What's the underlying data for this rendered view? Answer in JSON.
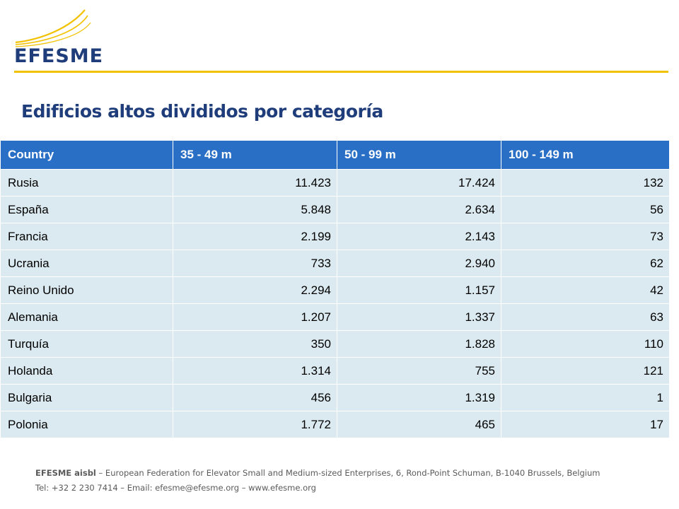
{
  "brand": {
    "logo_text": "EFESME",
    "accent_color": "#f2c200",
    "brand_color": "#1f3d7a"
  },
  "title": "Edificios altos divididos por categoría",
  "table": {
    "header_color": "#2a6fc6",
    "row_color": "#dbeaf0",
    "columns": [
      "Country",
      "35 - 49 m",
      "50 - 99 m",
      "100 - 149 m"
    ],
    "rows": [
      [
        "Rusia",
        "11.423",
        "17.424",
        "132"
      ],
      [
        "España",
        "5.848",
        "2.634",
        "56"
      ],
      [
        "Francia",
        "2.199",
        "2.143",
        "73"
      ],
      [
        "Ucrania",
        "733",
        "2.940",
        "62"
      ],
      [
        "Reino Unido",
        "2.294",
        "1.157",
        "42"
      ],
      [
        "Alemania",
        "1.207",
        "1.337",
        "63"
      ],
      [
        "Turquía",
        "350",
        "1.828",
        "110"
      ],
      [
        "Holanda",
        "1.314",
        "755",
        "121"
      ],
      [
        "Bulgaria",
        "456",
        "1.319",
        "1"
      ],
      [
        "Polonia",
        "1.772",
        "465",
        "17"
      ]
    ]
  },
  "footer": {
    "org_name": "EFESME aisbl",
    "line1_rest": " – European Federation for Elevator Small and Medium-sized Enterprises, 6, Rond-Point Schuman, B-1040 Brussels, Belgium",
    "line2": "Tel: +32 2 230 7414 – Email: efesme@efesme.org – www.efesme.org"
  }
}
